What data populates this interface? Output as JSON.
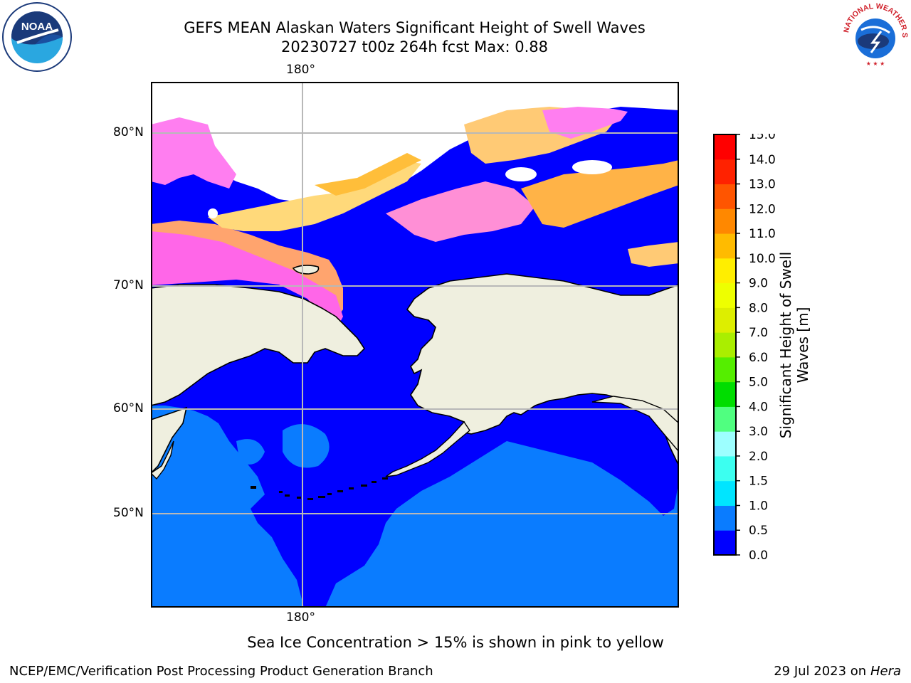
{
  "header": {
    "title": "GEFS MEAN Alaskan Waters Significant Height of Swell Waves",
    "subtitle": "20230727 t00z 264h fcst   Max: 0.88"
  },
  "logos": {
    "left": {
      "name": "noaa-logo",
      "text": "NOAA"
    },
    "right": {
      "name": "nws-logo",
      "text": "NATIONAL WEATHER SERVICE"
    }
  },
  "map": {
    "lon_top_label": "180°",
    "lon_bottom_label": "180°",
    "lat_labels": [
      "80°N",
      "70°N",
      "60°N",
      "50°N"
    ]
  },
  "colorbar": {
    "label": "Significant Height of Swell Waves [m]",
    "ticks": [
      "0.0",
      "0.5",
      "1.0",
      "1.5",
      "2.0",
      "3.0",
      "4.0",
      "5.0",
      "6.0",
      "7.0",
      "8.0",
      "9.0",
      "10.0",
      "11.0",
      "12.0",
      "13.0",
      "14.0",
      "15.0"
    ],
    "colors": [
      "#0000ff",
      "#0a7cff",
      "#00e5ff",
      "#3cfff0",
      "#9dffff",
      "#50ff80",
      "#00dd00",
      "#55ee00",
      "#aaee00",
      "#ddee00",
      "#eeff00",
      "#ffee00",
      "#ffbb00",
      "#ff8800",
      "#ff5500",
      "#ff2200",
      "#ff0000"
    ]
  },
  "footer": {
    "note": "Sea Ice Concentration > 15% is shown in pink to yellow",
    "left": "NCEP/EMC/Verification Post Processing Product Generation Branch",
    "right_date": "29 Jul 2023 on ",
    "right_host": "Hera"
  }
}
